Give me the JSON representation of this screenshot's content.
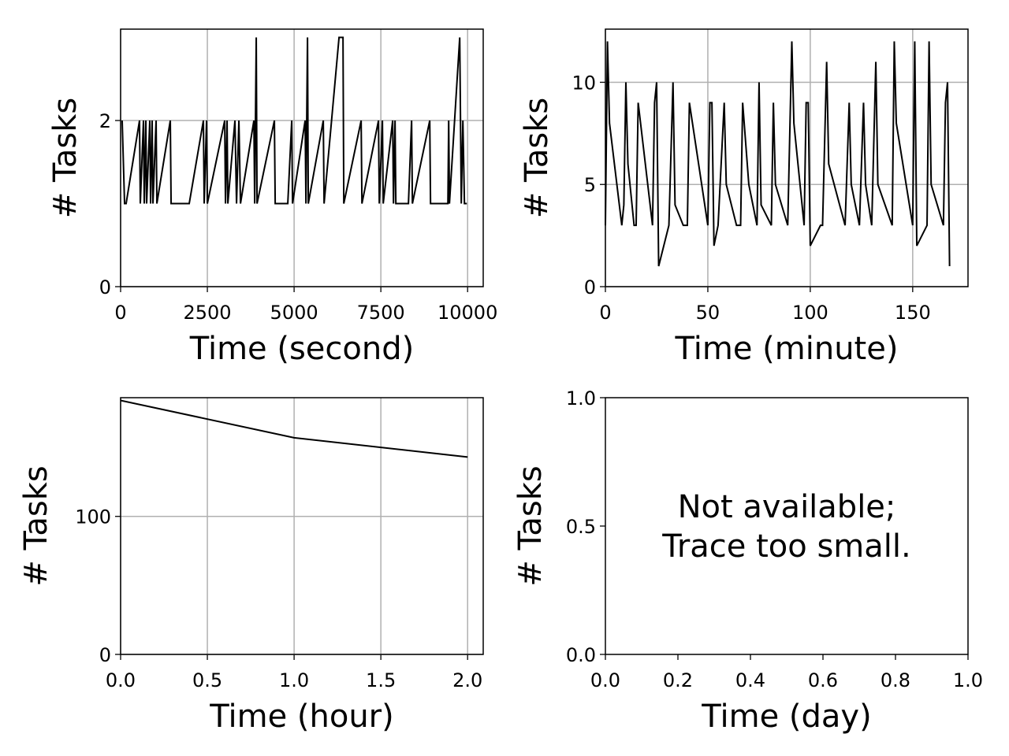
{
  "chart_data": [
    {
      "type": "line",
      "xlabel": "Time (second)",
      "ylabel": "# Tasks",
      "grid": true,
      "color": "#000000",
      "xlim": [
        0,
        10450
      ],
      "ylim": [
        0,
        3.1
      ],
      "xticks": [
        0,
        2500,
        5000,
        7500,
        10000
      ],
      "yticks": [
        0,
        2
      ],
      "x": [
        45,
        114,
        159,
        545,
        568,
        659,
        682,
        727,
        750,
        841,
        864,
        909,
        932,
        1023,
        1045,
        1432,
        1455,
        1977,
        2386,
        2409,
        2477,
        2500,
        3000,
        3023,
        3068,
        3091,
        3295,
        3341,
        3409,
        3455,
        3841,
        3864,
        3909,
        3932,
        4432,
        4455,
        4818,
        4932,
        4955,
        5318,
        5341,
        5386,
        5409,
        5841,
        5864,
        6295,
        6409,
        6432,
        6932,
        6955,
        7432,
        7455,
        7545,
        7568,
        7841,
        7864,
        7909,
        7932,
        8295,
        8386,
        8409,
        8909,
        8932,
        9432,
        9455,
        9477,
        9773,
        9818,
        9864,
        9909,
        9977
      ],
      "values": [
        2,
        1,
        1,
        2,
        1,
        2,
        1,
        2,
        1,
        2,
        1,
        2,
        1,
        2,
        1,
        2,
        1,
        1,
        2,
        1,
        2,
        1,
        2,
        1,
        2,
        1,
        2,
        1,
        2,
        1,
        2,
        1,
        3,
        1,
        2,
        1,
        1,
        2,
        1,
        2,
        1,
        3,
        1,
        2,
        1,
        3,
        3,
        1,
        2,
        1,
        2,
        1,
        2,
        1,
        2,
        1,
        2,
        1,
        1,
        2,
        1,
        2,
        1,
        1,
        2,
        1,
        3,
        1,
        2,
        1,
        1
      ]
    },
    {
      "type": "line",
      "xlabel": "Time (minute)",
      "ylabel": "# Tasks",
      "grid": true,
      "color": "#000000",
      "xlim": [
        0,
        177
      ],
      "ylim": [
        0,
        12.6
      ],
      "xticks": [
        0,
        50,
        100,
        150
      ],
      "yticks": [
        0,
        5,
        10
      ],
      "x": [
        0,
        1,
        2,
        8,
        9,
        10,
        11,
        14,
        15,
        16,
        23,
        24,
        25,
        26,
        31,
        33,
        34,
        38,
        40,
        41,
        50,
        51,
        52,
        53,
        55,
        58,
        59,
        64,
        66,
        67,
        70,
        74,
        75,
        76,
        81,
        82,
        83,
        89,
        91,
        92,
        97,
        98,
        99,
        100,
        105,
        106,
        108,
        109,
        117,
        119,
        120,
        124,
        126,
        127,
        130,
        132,
        133,
        140,
        141,
        142,
        150,
        151,
        152,
        157,
        158,
        159,
        165,
        166,
        167,
        168
      ],
      "values": [
        3,
        12,
        8,
        3,
        4,
        10,
        6,
        3,
        3,
        9,
        3,
        9,
        10,
        1,
        3,
        10,
        4,
        3,
        3,
        9,
        3,
        9,
        9,
        2,
        3,
        9,
        5,
        3,
        3,
        9,
        5,
        3,
        10,
        4,
        3,
        9,
        5,
        3,
        12,
        8,
        3,
        9,
        9,
        2,
        3,
        3,
        11,
        6,
        3,
        9,
        5,
        3,
        9,
        5,
        3,
        11,
        5,
        3,
        12,
        8,
        3,
        12,
        2,
        3,
        12,
        5,
        3,
        9,
        10,
        1
      ]
    },
    {
      "type": "line",
      "xlabel": "Time (hour)",
      "ylabel": "# Tasks",
      "grid": true,
      "color": "#000000",
      "xlim": [
        0,
        2.09
      ],
      "ylim": [
        0,
        186
      ],
      "xticks": [
        {
          "value": 0,
          "label": "0.0"
        },
        0.5,
        {
          "value": 1,
          "label": "1.0"
        },
        1.5,
        {
          "value": 2,
          "label": "2.0"
        }
      ],
      "yticks": [
        0,
        100
      ],
      "x": [
        0,
        1,
        2
      ],
      "values": [
        184,
        157,
        143
      ]
    },
    {
      "type": "line",
      "xlabel": "Time (day)",
      "ylabel": "# Tasks",
      "grid": false,
      "xlim": [
        0,
        1
      ],
      "ylim": [
        0,
        1
      ],
      "xticks": [
        {
          "value": 0,
          "label": "0.0"
        },
        0.2,
        0.4,
        0.6,
        0.8,
        {
          "value": 1,
          "label": "1.0"
        }
      ],
      "yticks": [
        {
          "value": 0,
          "label": "0.0"
        },
        0.5,
        {
          "value": 1,
          "label": "1.0"
        }
      ],
      "annotation": [
        "Not available;",
        "Trace too small."
      ]
    }
  ]
}
